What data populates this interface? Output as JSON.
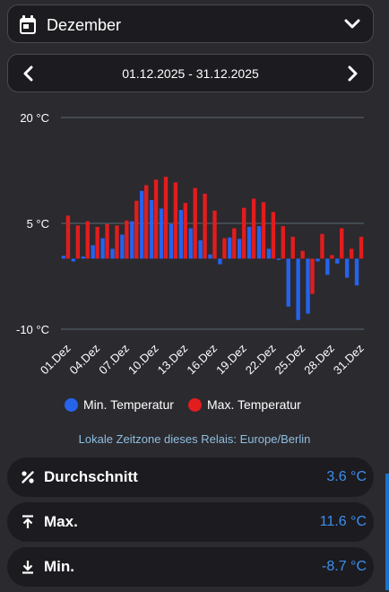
{
  "header": {
    "month": "Dezember",
    "date_range": "01.12.2025 - 31.12.2025",
    "icons": {
      "calendar": "calendar-icon",
      "dropdown": "chevron-down-icon",
      "prev": "chevron-left-icon",
      "next": "chevron-right-icon"
    }
  },
  "chart_data": {
    "type": "bar",
    "y_ticks": [
      "20 °C",
      "5 °C",
      "-10 °C"
    ],
    "ylim": [
      -10,
      20
    ],
    "grid": true,
    "x_tick_labels": [
      "01.Dez",
      "04.Dez",
      "07.Dez",
      "10.Dez",
      "13.Dez",
      "16.Dez",
      "19.Dez",
      "22.Dez",
      "25.Dez",
      "28.Dez",
      "31.Dez"
    ],
    "series": [
      {
        "name": "Min. Temperatur",
        "color": "#2563eb",
        "values": [
          0.4,
          -0.4,
          0.3,
          1.9,
          2.9,
          1.4,
          3.4,
          5.3,
          9.6,
          8.3,
          7.1,
          4.9,
          6.9,
          4.3,
          2.6,
          0.6,
          -0.8,
          3.0,
          2.8,
          4.5,
          4.6,
          1.4,
          -0.2,
          -6.8,
          -8.7,
          -7.8,
          -0.4,
          -2.3,
          -0.7,
          -2.7,
          -3.8
        ]
      },
      {
        "name": "Max. Temperatur",
        "color": "#e11d1d",
        "values": [
          6.1,
          4.7,
          5.3,
          4.5,
          4.9,
          4.7,
          5.4,
          8.2,
          10.4,
          11.2,
          11.6,
          10.8,
          7.9,
          10.0,
          9.2,
          6.8,
          2.9,
          4.3,
          7.2,
          8.5,
          8.0,
          6.6,
          4.6,
          3.1,
          1.1,
          -5.0,
          3.5,
          0.5,
          4.3,
          1.4,
          3.1
        ]
      }
    ],
    "legend_position": "bottom"
  },
  "timezone_note": "Lokale Zeitzone dieses Relais: Europe/Berlin",
  "stats": [
    {
      "label": "Durchschnitt",
      "value": "3.6 °C",
      "icon": "percent-icon"
    },
    {
      "label": "Max.",
      "value": "11.6 °C",
      "icon": "arrow-up-to-line-icon"
    },
    {
      "label": "Min.",
      "value": "-8.7 °C",
      "icon": "arrow-down-to-line-icon"
    }
  ]
}
